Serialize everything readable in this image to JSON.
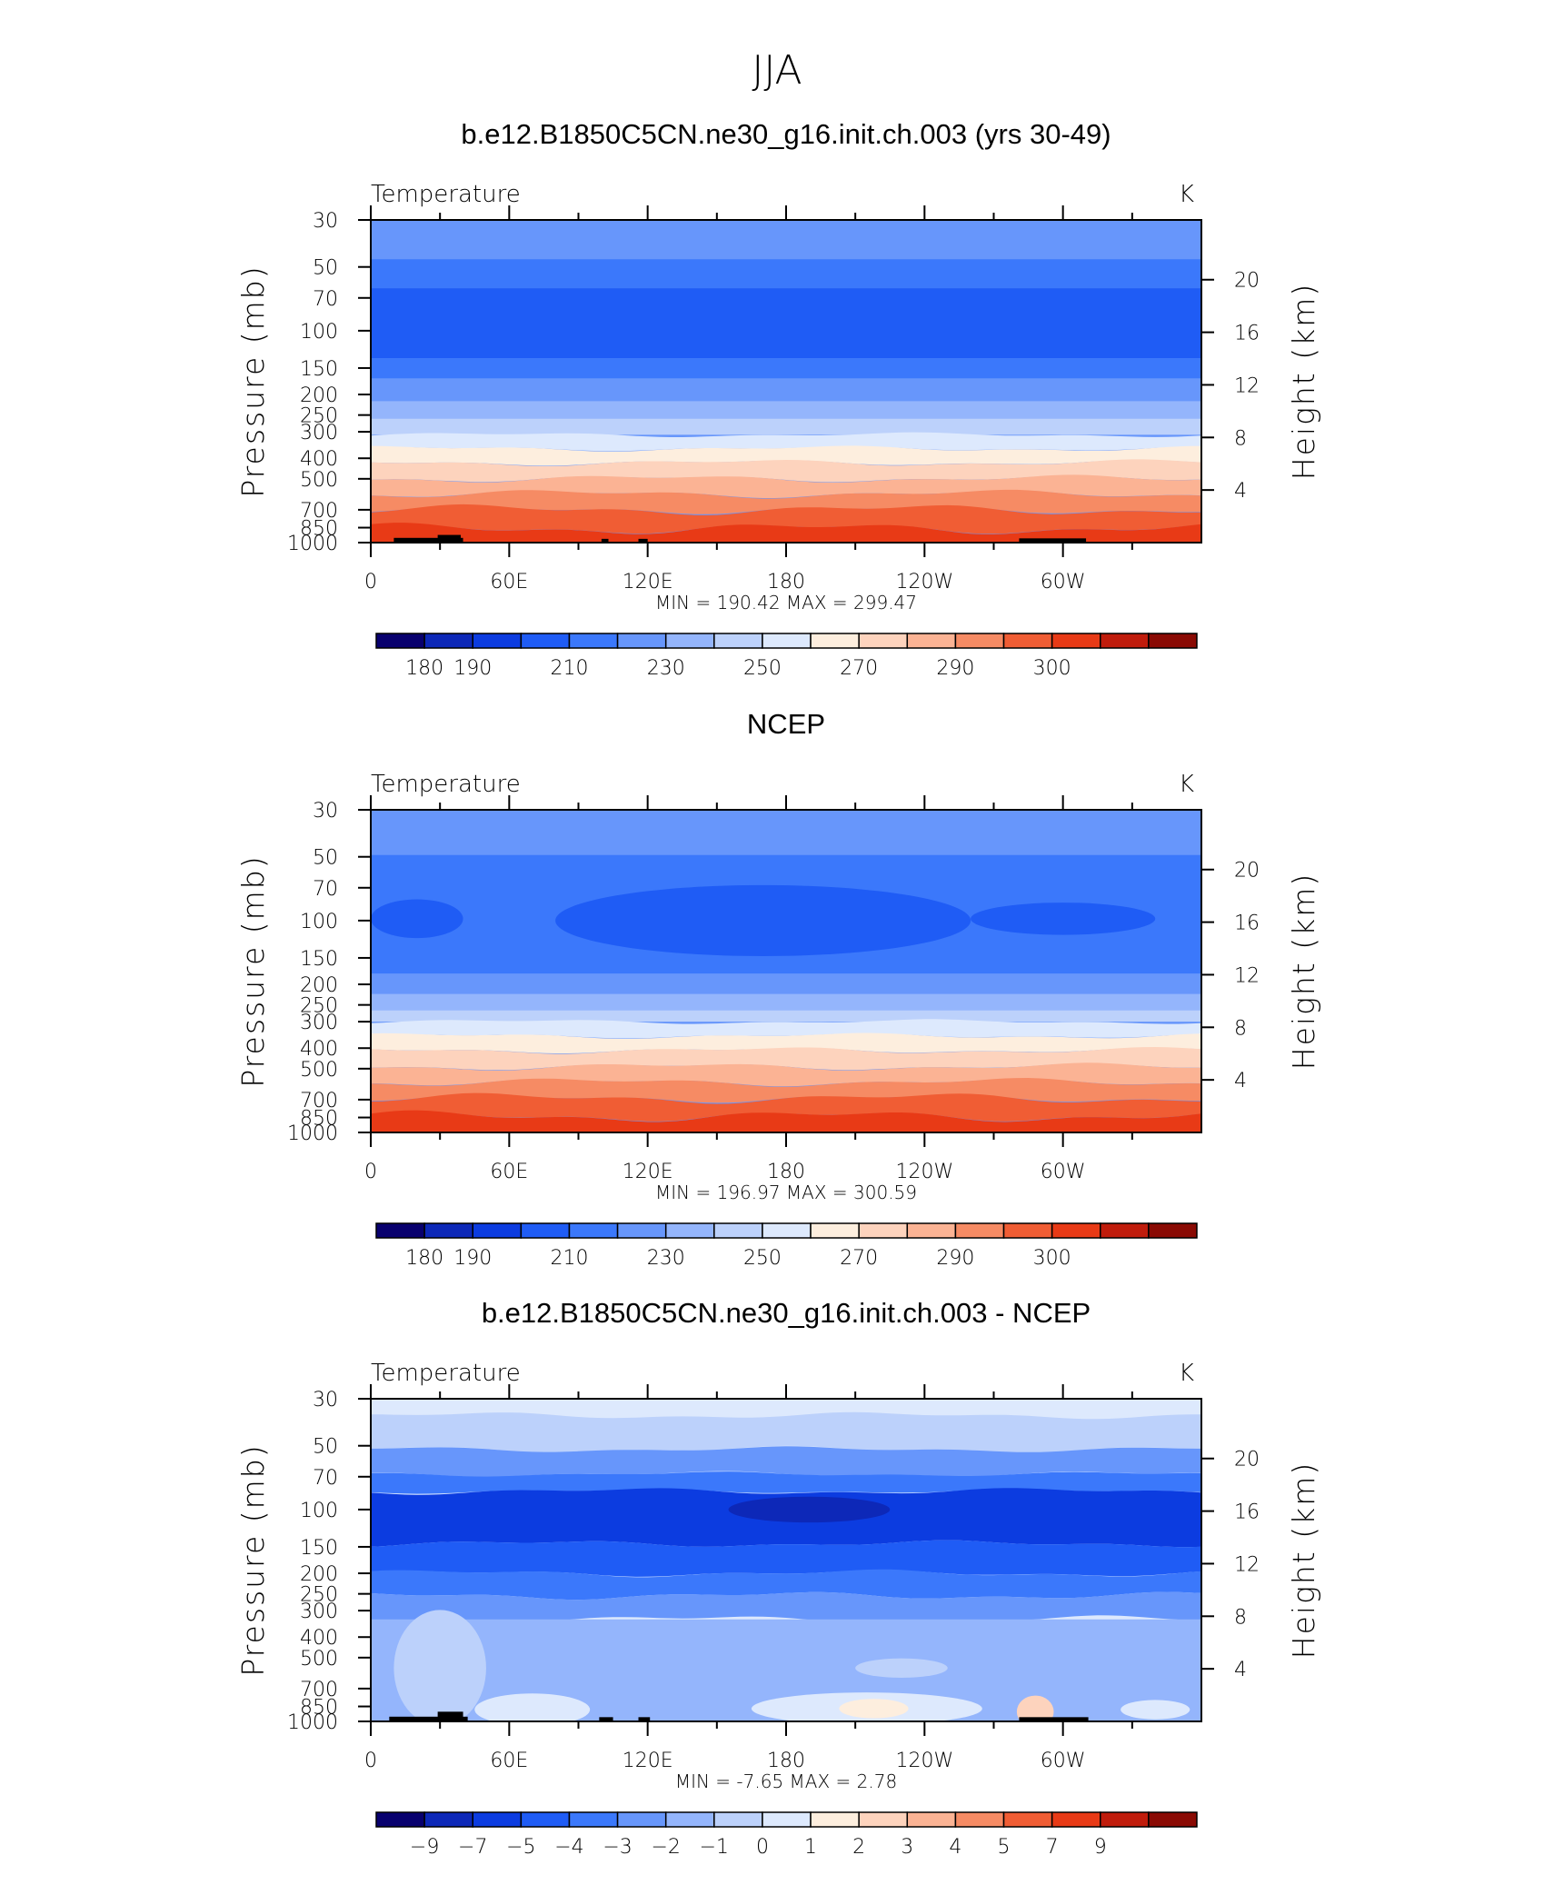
{
  "figure": {
    "title": "JJA",
    "xtick_labels": [
      "0",
      "60E",
      "120E",
      "180",
      "120W",
      "60W"
    ],
    "ytick_labels": [
      "30",
      "50",
      "70",
      "100",
      "150",
      "200",
      "250",
      "300",
      "400",
      "500",
      "700",
      "850",
      "1000"
    ],
    "rtick_labels": [
      "20",
      "16",
      "12",
      "8",
      "4"
    ],
    "ylabel": "Pressure (mb)",
    "rlabel": "Height (km)"
  },
  "colors": {
    "palette": [
      "#08006e",
      "#0d28b8",
      "#0c3ce0",
      "#1f5cf5",
      "#3b78fb",
      "#6796fb",
      "#94b5fc",
      "#bcd1fb",
      "#dde9fd",
      "#fdeede",
      "#fdd3bd",
      "#fbb394",
      "#f68b64",
      "#f05d34",
      "#e83a16",
      "#c01c0c",
      "#8a0a04"
    ],
    "land": "#000000"
  },
  "chart_data": [
    {
      "type": "heatmap",
      "title": "b.e12.B1850C5CN.ne30_g16.init.ch.003 (yrs 30-49)",
      "left_label": "Temperature",
      "units": "K",
      "x": [
        0,
        60,
        120,
        180,
        240,
        300
      ],
      "y": [
        30,
        50,
        70,
        100,
        150,
        200,
        250,
        300,
        400,
        500,
        700,
        850,
        1000
      ],
      "ylim": [
        1000,
        30
      ],
      "y_scale": "log",
      "stats": "MIN = 190.42   MAX = 299.47",
      "colorbar_labels": [
        "180",
        "190",
        "210",
        "230",
        "250",
        "270",
        "290",
        "300"
      ],
      "bands": [
        {
          "p_top": 30,
          "p_bottom": 46,
          "ci": 5,
          "ripple": 0
        },
        {
          "p_top": 46,
          "p_bottom": 63,
          "ci": 4,
          "ripple": 0
        },
        {
          "p_top": 63,
          "p_bottom": 135,
          "ci": 3,
          "ripple": 0
        },
        {
          "p_top": 135,
          "p_bottom": 168,
          "ci": 4,
          "ripple": 0
        },
        {
          "p_top": 168,
          "p_bottom": 215,
          "ci": 5,
          "ripple": 0
        },
        {
          "p_top": 215,
          "p_bottom": 260,
          "ci": 6,
          "ripple": 0
        },
        {
          "p_top": 260,
          "p_bottom": 310,
          "ci": 7,
          "ripple": 0
        },
        {
          "p_top": 310,
          "p_bottom": 360,
          "ci": 8,
          "ripple": 10
        },
        {
          "p_top": 360,
          "p_bottom": 420,
          "ci": 9,
          "ripple": 12
        },
        {
          "p_top": 420,
          "p_bottom": 500,
          "ci": 10,
          "ripple": 14
        },
        {
          "p_top": 500,
          "p_bottom": 590,
          "ci": 11,
          "ripple": 16
        },
        {
          "p_top": 590,
          "p_bottom": 700,
          "ci": 12,
          "ripple": 18
        },
        {
          "p_top": 700,
          "p_bottom": 860,
          "ci": 13,
          "ripple": 22
        },
        {
          "p_top": 860,
          "p_bottom": 1000,
          "ci": 14,
          "ripple": 24
        }
      ],
      "blobs": [],
      "land": [
        {
          "lon0": 10,
          "lon1": 40,
          "p": 950
        },
        {
          "lon0": 29,
          "lon1": 39,
          "p": 920
        },
        {
          "lon0": 100,
          "lon1": 103,
          "p": 960
        },
        {
          "lon0": 116,
          "lon1": 120,
          "p": 960
        },
        {
          "lon0": 281,
          "lon1": 310,
          "p": 955
        }
      ]
    },
    {
      "type": "heatmap",
      "title": "NCEP",
      "left_label": "Temperature",
      "units": "K",
      "x": [
        0,
        60,
        120,
        180,
        240,
        300
      ],
      "y": [
        30,
        50,
        70,
        100,
        150,
        200,
        250,
        300,
        400,
        500,
        700,
        850,
        1000
      ],
      "ylim": [
        1000,
        30
      ],
      "y_scale": "log",
      "stats": "MIN = 196.97   MAX = 300.59",
      "colorbar_labels": [
        "180",
        "190",
        "210",
        "230",
        "250",
        "270",
        "290",
        "300"
      ],
      "bands": [
        {
          "p_top": 30,
          "p_bottom": 49,
          "ci": 5,
          "ripple": 0
        },
        {
          "p_top": 49,
          "p_bottom": 145,
          "ci": 4,
          "ripple": 0
        },
        {
          "p_top": 145,
          "p_bottom": 178,
          "ci": 4,
          "ripple": 0
        },
        {
          "p_top": 178,
          "p_bottom": 222,
          "ci": 5,
          "ripple": 0
        },
        {
          "p_top": 222,
          "p_bottom": 265,
          "ci": 6,
          "ripple": 0
        },
        {
          "p_top": 265,
          "p_bottom": 300,
          "ci": 7,
          "ripple": 0
        },
        {
          "p_top": 300,
          "p_bottom": 350,
          "ci": 8,
          "ripple": 10
        },
        {
          "p_top": 350,
          "p_bottom": 410,
          "ci": 9,
          "ripple": 12
        },
        {
          "p_top": 410,
          "p_bottom": 490,
          "ci": 10,
          "ripple": 14
        },
        {
          "p_top": 490,
          "p_bottom": 580,
          "ci": 11,
          "ripple": 16
        },
        {
          "p_top": 580,
          "p_bottom": 690,
          "ci": 12,
          "ripple": 18
        },
        {
          "p_top": 690,
          "p_bottom": 840,
          "ci": 13,
          "ripple": 22
        },
        {
          "p_top": 840,
          "p_bottom": 1000,
          "ci": 14,
          "ripple": 24
        }
      ],
      "blobs": [
        {
          "lon": 170,
          "p": 100,
          "dlon": 90,
          "dp": 0.11,
          "ci": 3
        },
        {
          "lon": 20,
          "p": 98,
          "dlon": 20,
          "dp": 0.06,
          "ci": 3
        },
        {
          "lon": 300,
          "p": 98,
          "dlon": 40,
          "dp": 0.05,
          "ci": 3
        }
      ],
      "land": []
    },
    {
      "type": "heatmap",
      "title": "b.e12.B1850C5CN.ne30_g16.init.ch.003 - NCEP",
      "left_label": "Temperature",
      "units": "K",
      "x": [
        0,
        60,
        120,
        180,
        240,
        300
      ],
      "y": [
        30,
        50,
        70,
        100,
        150,
        200,
        250,
        300,
        400,
        500,
        700,
        850,
        1000
      ],
      "ylim": [
        1000,
        30
      ],
      "y_scale": "log",
      "stats": "MIN =   -7.65   MAX =     2.78",
      "colorbar_labels": [
        "-9",
        "-7",
        "-5",
        "-4",
        "-3",
        "-2",
        "-1",
        "0",
        "1",
        "2",
        "3",
        "4",
        "5",
        "7",
        "9"
      ],
      "bands": [
        {
          "p_top": 30,
          "p_bottom": 36,
          "ci": 8,
          "ripple": 10
        },
        {
          "p_top": 36,
          "p_bottom": 52,
          "ci": 7,
          "ripple": 14
        },
        {
          "p_top": 52,
          "p_bottom": 68,
          "ci": 5,
          "ripple": 12
        },
        {
          "p_top": 68,
          "p_bottom": 82,
          "ci": 4,
          "ripple": 10
        },
        {
          "p_top": 82,
          "p_bottom": 145,
          "ci": 2,
          "ripple": 14
        },
        {
          "p_top": 145,
          "p_bottom": 200,
          "ci": 3,
          "ripple": 14
        },
        {
          "p_top": 200,
          "p_bottom": 255,
          "ci": 4,
          "ripple": 16
        },
        {
          "p_top": 255,
          "p_bottom": 330,
          "ci": 5,
          "ripple": 16
        },
        {
          "p_top": 330,
          "p_bottom": 1000,
          "ci": 6,
          "ripple": 0
        }
      ],
      "blobs": [
        {
          "lon": 190,
          "p": 100,
          "dlon": 35,
          "dp": 0.04,
          "ci": 1
        },
        {
          "lon": 30,
          "p": 560,
          "dlon": 20,
          "dp": 0.18,
          "ci": 7
        },
        {
          "lon": 230,
          "p": 560,
          "dlon": 20,
          "dp": 0.03,
          "ci": 7
        },
        {
          "lon": 215,
          "p": 870,
          "dlon": 50,
          "dp": 0.05,
          "ci": 8
        },
        {
          "lon": 218,
          "p": 870,
          "dlon": 15,
          "dp": 0.03,
          "ci": 9
        },
        {
          "lon": 288,
          "p": 900,
          "dlon": 8,
          "dp": 0.05,
          "ci": 10
        },
        {
          "lon": 70,
          "p": 880,
          "dlon": 25,
          "dp": 0.05,
          "ci": 8
        },
        {
          "lon": 340,
          "p": 880,
          "dlon": 15,
          "dp": 0.03,
          "ci": 8
        }
      ],
      "land": [
        {
          "lon0": 8,
          "lon1": 42,
          "p": 950
        },
        {
          "lon0": 29,
          "lon1": 40,
          "p": 900
        },
        {
          "lon0": 99,
          "lon1": 105,
          "p": 955
        },
        {
          "lon0": 116,
          "lon1": 121,
          "p": 955
        },
        {
          "lon0": 281,
          "lon1": 311,
          "p": 955
        }
      ]
    }
  ]
}
